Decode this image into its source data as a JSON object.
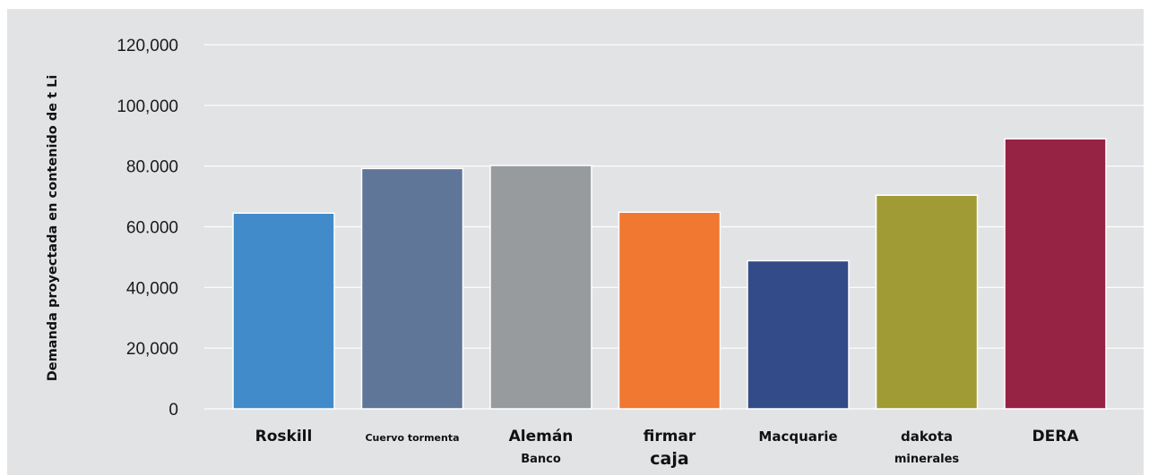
{
  "chart_data": {
    "type": "bar",
    "title": "",
    "xlabel": "",
    "ylabel": "Demanda proyectada en contenido de t Li",
    "ylim": [
      0,
      120000
    ],
    "grid": true,
    "legend": "none",
    "y_tick_values": [
      0,
      20000,
      40000,
      60000,
      80000,
      100000,
      120000
    ],
    "y_tick_labels": [
      "0",
      "20,000",
      "40,000",
      "60.000",
      "80.000",
      "100,000",
      "120,000"
    ],
    "categories": [
      "Roskill",
      "Cuervo tormenta",
      "Alemán Banco",
      "firmar caja",
      "Macquarie",
      "dakota minerales",
      "DERA"
    ],
    "category_labels": [
      {
        "lines": [
          "Roskill"
        ],
        "sizes": [
          17
        ]
      },
      {
        "lines": [
          "Cuervo tormenta"
        ],
        "sizes": [
          11
        ]
      },
      {
        "lines": [
          "Alemán",
          "Banco"
        ],
        "sizes": [
          17,
          13
        ]
      },
      {
        "lines": [
          "firmar",
          "caja"
        ],
        "sizes": [
          17,
          19
        ]
      },
      {
        "lines": [
          "Macquarie"
        ],
        "sizes": [
          15
        ]
      },
      {
        "lines": [
          "dakota",
          "minerales"
        ],
        "sizes": [
          15,
          13
        ]
      },
      {
        "lines": [
          "DERA"
        ],
        "sizes": [
          17
        ]
      }
    ],
    "values": [
      64500,
      79200,
      80200,
      64800,
      48800,
      70400,
      89000
    ],
    "colors": [
      "#428bca",
      "#5f7699",
      "#989b9e",
      "#f07831",
      "#334b88",
      "#a09b35",
      "#962244"
    ]
  }
}
